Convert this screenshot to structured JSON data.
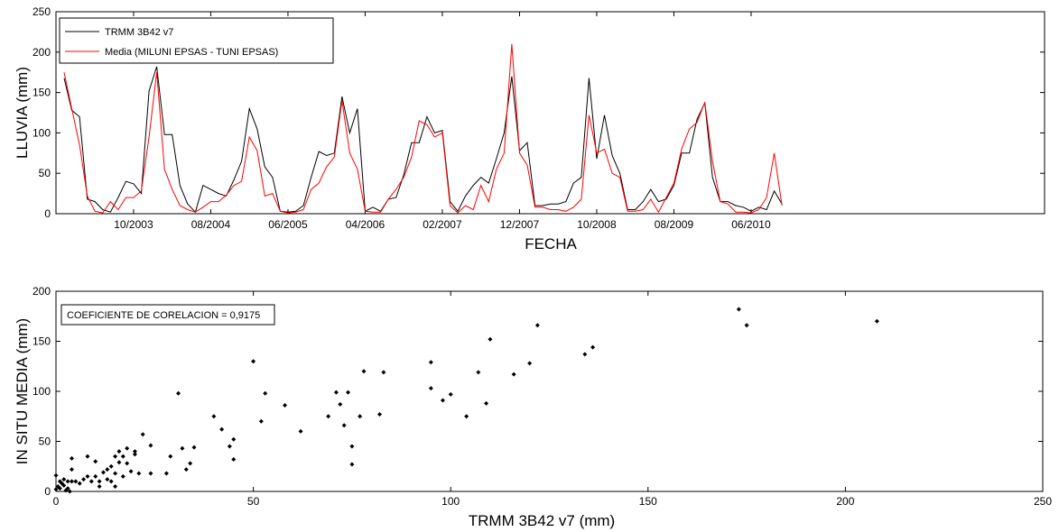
{
  "chart_data": [
    {
      "type": "line",
      "xlabel": "FECHA",
      "ylabel": "LLUVIA (mm)",
      "ylim": [
        0,
        250
      ],
      "yticks": [
        "0",
        "50",
        "100",
        "150",
        "200",
        "250"
      ],
      "xticks": [
        "10/2003",
        "08/2004",
        "06/2005",
        "04/2006",
        "02/2007",
        "12/2007",
        "10/2008",
        "08/2009",
        "06/2010"
      ],
      "x_start": "01/2003",
      "x_end": "12/2010",
      "grid": false,
      "legend_position": "top-left",
      "series": [
        {
          "name": "TRMM 3B42 v7",
          "color": "#000000",
          "values": [
            168,
            128,
            120,
            18,
            15,
            5,
            2,
            20,
            40,
            37,
            25,
            152,
            182,
            98,
            98,
            35,
            12,
            2,
            35,
            30,
            25,
            22,
            42,
            65,
            130,
            105,
            58,
            45,
            3,
            2,
            3,
            10,
            45,
            77,
            72,
            75,
            145,
            100,
            130,
            3,
            8,
            3,
            18,
            20,
            48,
            88,
            88,
            120,
            100,
            103,
            15,
            3,
            22,
            35,
            45,
            38,
            68,
            100,
            170,
            78,
            88,
            10,
            10,
            12,
            12,
            15,
            38,
            45,
            168,
            68,
            122,
            72,
            50,
            5,
            5,
            15,
            30,
            15,
            18,
            35,
            75,
            75,
            117,
            137,
            45,
            15,
            15,
            10,
            8,
            3,
            8,
            5,
            28,
            12
          ]
        },
        {
          "name": "Media (MILUNI EPSAS - TUNI EPSAS)",
          "color": "#ff0000",
          "values": [
            175,
            130,
            85,
            22,
            3,
            1,
            15,
            5,
            20,
            20,
            28,
            95,
            175,
            55,
            30,
            10,
            5,
            2,
            8,
            15,
            15,
            23,
            35,
            40,
            95,
            78,
            22,
            25,
            3,
            1,
            2,
            5,
            30,
            38,
            58,
            70,
            140,
            75,
            55,
            3,
            2,
            2,
            18,
            30,
            45,
            70,
            115,
            110,
            95,
            100,
            10,
            1,
            10,
            5,
            35,
            15,
            55,
            75,
            210,
            75,
            60,
            8,
            8,
            5,
            5,
            3,
            8,
            18,
            122,
            75,
            80,
            50,
            45,
            3,
            3,
            5,
            18,
            2,
            20,
            38,
            80,
            105,
            113,
            138,
            65,
            15,
            12,
            2,
            2,
            1,
            5,
            20,
            75,
            10
          ]
        }
      ]
    },
    {
      "type": "scatter",
      "xlabel": "TRMM 3B42 v7 (mm)",
      "ylabel": "IN SITU MEDIA (mm)",
      "xlim": [
        0,
        250
      ],
      "ylim": [
        0,
        200
      ],
      "xticks": [
        "0",
        "50",
        "100",
        "150",
        "200",
        "250"
      ],
      "yticks": [
        "0",
        "50",
        "100",
        "150",
        "200"
      ],
      "annotation": "COEFICIENTE DE CORELACION = 0,9175",
      "points": [
        [
          0,
          2
        ],
        [
          0,
          16
        ],
        [
          0.5,
          5
        ],
        [
          1,
          10
        ],
        [
          1,
          3
        ],
        [
          1.5,
          8
        ],
        [
          2,
          12
        ],
        [
          2,
          6
        ],
        [
          2.5,
          1
        ],
        [
          3,
          10
        ],
        [
          3,
          3
        ],
        [
          3.5,
          0
        ],
        [
          4,
          33
        ],
        [
          4,
          22
        ],
        [
          4,
          10
        ],
        [
          5,
          10
        ],
        [
          6,
          8
        ],
        [
          7,
          12
        ],
        [
          8,
          35
        ],
        [
          8,
          15
        ],
        [
          9,
          10
        ],
        [
          10,
          30
        ],
        [
          10,
          15
        ],
        [
          11,
          10
        ],
        [
          11,
          5
        ],
        [
          12,
          19
        ],
        [
          13,
          12
        ],
        [
          13,
          22
        ],
        [
          14,
          10
        ],
        [
          14,
          25
        ],
        [
          15,
          5
        ],
        [
          15,
          18
        ],
        [
          15,
          35
        ],
        [
          16,
          29
        ],
        [
          16,
          40
        ],
        [
          17,
          15
        ],
        [
          17,
          35
        ],
        [
          18,
          43
        ],
        [
          18,
          28
        ],
        [
          19,
          20
        ],
        [
          20,
          40
        ],
        [
          20,
          37
        ],
        [
          21,
          18
        ],
        [
          22,
          57
        ],
        [
          24,
          18
        ],
        [
          24,
          46
        ],
        [
          28,
          18
        ],
        [
          29,
          35
        ],
        [
          31,
          98
        ],
        [
          32,
          43
        ],
        [
          33,
          22
        ],
        [
          34,
          28
        ],
        [
          35,
          44
        ],
        [
          40,
          75
        ],
        [
          42,
          62
        ],
        [
          44,
          45
        ],
        [
          45,
          32
        ],
        [
          45,
          52
        ],
        [
          50,
          130
        ],
        [
          52,
          70
        ],
        [
          53,
          98
        ],
        [
          58,
          86
        ],
        [
          62,
          60
        ],
        [
          69,
          75
        ],
        [
          71,
          99
        ],
        [
          72,
          87
        ],
        [
          73,
          66
        ],
        [
          74,
          99
        ],
        [
          75,
          45
        ],
        [
          75,
          27
        ],
        [
          77,
          75
        ],
        [
          78,
          120
        ],
        [
          82,
          77
        ],
        [
          83,
          119
        ],
        [
          95,
          103
        ],
        [
          95,
          129
        ],
        [
          98,
          91
        ],
        [
          100,
          97
        ],
        [
          104,
          75
        ],
        [
          107,
          119
        ],
        [
          109,
          88
        ],
        [
          110,
          152
        ],
        [
          116,
          117
        ],
        [
          120,
          128
        ],
        [
          122,
          166
        ],
        [
          134,
          137
        ],
        [
          136,
          144
        ],
        [
          173,
          182
        ],
        [
          175,
          166
        ],
        [
          208,
          170
        ]
      ]
    }
  ]
}
